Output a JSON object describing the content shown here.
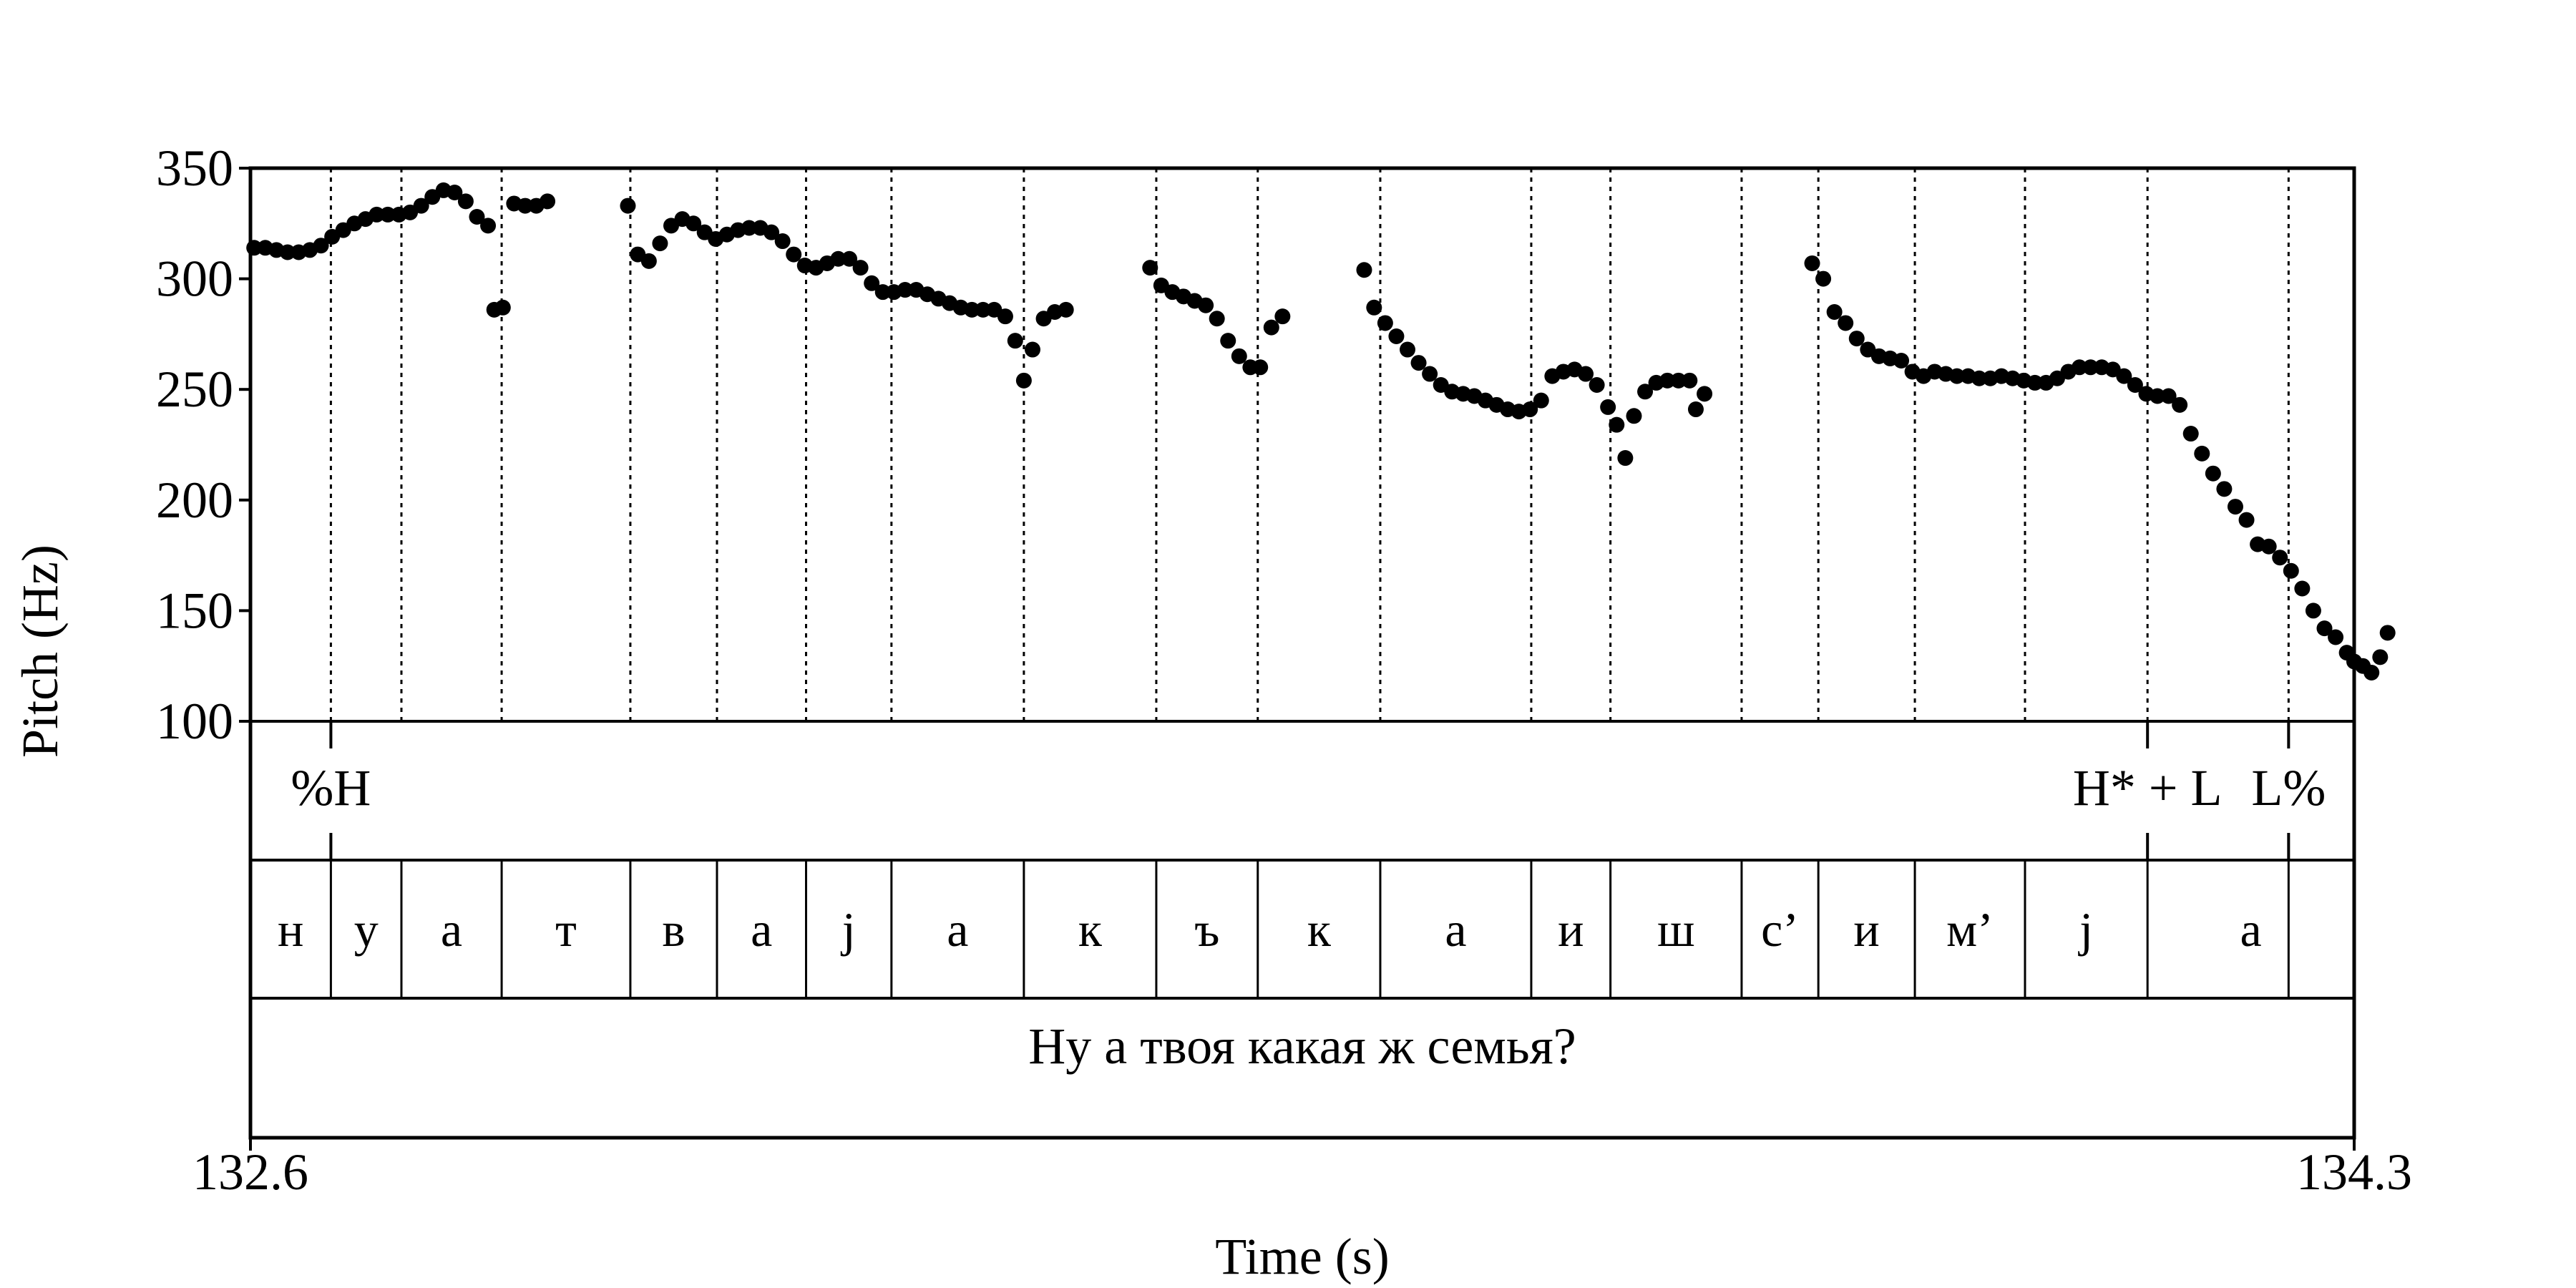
{
  "chart_data": {
    "type": "scatter",
    "xlabel": "Time (s)",
    "ylabel": "Pitch (Hz)",
    "xlim": [
      132.6,
      134.3
    ],
    "ylim": [
      100,
      350
    ],
    "x_tick_labels": [
      "132.6",
      "134.3"
    ],
    "y_ticks": [
      100,
      150,
      200,
      250,
      300,
      350
    ],
    "grid": "dotted vertical lines at segment boundaries",
    "boundaries": [
      132.665,
      132.722,
      132.803,
      132.907,
      132.977,
      133.049,
      133.118,
      133.225,
      133.332,
      133.414,
      133.513,
      133.635,
      133.699,
      133.805,
      133.867,
      133.945,
      134.034,
      134.133,
      134.247
    ],
    "tones": [
      {
        "label": "%H",
        "time": 132.665
      },
      {
        "label": "H* + L",
        "time": 134.133
      },
      {
        "label": "L%",
        "time": 134.247
      }
    ],
    "segments": [
      {
        "label": "н",
        "start": 132.6,
        "end": 132.665
      },
      {
        "label": "у",
        "start": 132.665,
        "end": 132.722
      },
      {
        "label": "а",
        "start": 132.722,
        "end": 132.803
      },
      {
        "label": "т",
        "start": 132.803,
        "end": 132.907
      },
      {
        "label": "в",
        "start": 132.907,
        "end": 132.977
      },
      {
        "label": "а",
        "start": 132.977,
        "end": 133.049
      },
      {
        "label": "j",
        "start": 133.049,
        "end": 133.118
      },
      {
        "label": "а",
        "start": 133.118,
        "end": 133.225
      },
      {
        "label": "к",
        "start": 133.225,
        "end": 133.332
      },
      {
        "label": "ъ",
        "start": 133.332,
        "end": 133.414
      },
      {
        "label": "к",
        "start": 133.414,
        "end": 133.513
      },
      {
        "label": "а",
        "start": 133.513,
        "end": 133.635
      },
      {
        "label": "и",
        "start": 133.635,
        "end": 133.699
      },
      {
        "label": "ш",
        "start": 133.699,
        "end": 133.805
      },
      {
        "label": "с’",
        "start": 133.805,
        "end": 133.867
      },
      {
        "label": "и",
        "start": 133.867,
        "end": 133.945
      },
      {
        "label": "м’",
        "start": 133.945,
        "end": 134.034
      },
      {
        "label": "j",
        "start": 134.034,
        "end": 134.133
      },
      {
        "label": "а",
        "start": 134.133,
        "end": 134.3
      }
    ],
    "sentence": "Ну а твоя какая ж семья?",
    "points": [
      [
        132.603,
        314
      ],
      [
        132.612,
        314
      ],
      [
        132.621,
        313
      ],
      [
        132.63,
        312
      ],
      [
        132.639,
        312
      ],
      [
        132.648,
        313
      ],
      [
        132.657,
        315
      ],
      [
        132.666,
        319
      ],
      [
        132.675,
        322
      ],
      [
        132.684,
        325
      ],
      [
        132.693,
        327
      ],
      [
        132.702,
        329
      ],
      [
        132.711,
        329
      ],
      [
        132.72,
        329
      ],
      [
        132.729,
        330
      ],
      [
        132.738,
        333
      ],
      [
        132.747,
        337
      ],
      [
        132.756,
        340
      ],
      [
        132.765,
        339
      ],
      [
        132.774,
        335
      ],
      [
        132.783,
        328
      ],
      [
        132.792,
        324
      ],
      [
        132.797,
        286
      ],
      [
        132.804,
        287
      ],
      [
        132.813,
        334
      ],
      [
        132.822,
        333
      ],
      [
        132.831,
        333
      ],
      [
        132.84,
        335
      ],
      [
        132.905,
        333
      ],
      [
        132.913,
        311
      ],
      [
        132.922,
        308
      ],
      [
        132.931,
        316
      ],
      [
        132.94,
        324
      ],
      [
        132.949,
        327
      ],
      [
        132.958,
        325
      ],
      [
        132.967,
        321
      ],
      [
        132.976,
        318
      ],
      [
        132.985,
        320
      ],
      [
        132.994,
        322
      ],
      [
        133.003,
        323
      ],
      [
        133.012,
        323
      ],
      [
        133.021,
        321
      ],
      [
        133.03,
        317
      ],
      [
        133.039,
        311
      ],
      [
        133.048,
        306
      ],
      [
        133.057,
        305
      ],
      [
        133.066,
        307
      ],
      [
        133.075,
        309
      ],
      [
        133.084,
        309
      ],
      [
        133.093,
        305
      ],
      [
        133.102,
        298
      ],
      [
        133.111,
        294
      ],
      [
        133.12,
        294
      ],
      [
        133.129,
        295
      ],
      [
        133.138,
        295
      ],
      [
        133.147,
        293
      ],
      [
        133.156,
        291
      ],
      [
        133.165,
        289
      ],
      [
        133.174,
        287
      ],
      [
        133.183,
        286
      ],
      [
        133.192,
        286
      ],
      [
        133.201,
        286
      ],
      [
        133.21,
        283
      ],
      [
        133.218,
        272
      ],
      [
        133.225,
        254
      ],
      [
        133.232,
        268
      ],
      [
        133.241,
        282
      ],
      [
        133.25,
        285
      ],
      [
        133.259,
        286
      ],
      [
        133.327,
        305
      ],
      [
        133.336,
        297
      ],
      [
        133.345,
        294
      ],
      [
        133.354,
        292
      ],
      [
        133.363,
        290
      ],
      [
        133.372,
        288
      ],
      [
        133.381,
        282
      ],
      [
        133.39,
        272
      ],
      [
        133.399,
        265
      ],
      [
        133.408,
        260
      ],
      [
        133.416,
        260
      ],
      [
        133.425,
        278
      ],
      [
        133.434,
        283
      ],
      [
        133.5,
        304
      ],
      [
        133.508,
        287
      ],
      [
        133.517,
        280
      ],
      [
        133.526,
        274
      ],
      [
        133.535,
        268
      ],
      [
        133.544,
        262
      ],
      [
        133.553,
        257
      ],
      [
        133.562,
        252
      ],
      [
        133.571,
        249
      ],
      [
        133.58,
        248
      ],
      [
        133.589,
        247
      ],
      [
        133.598,
        245
      ],
      [
        133.607,
        243
      ],
      [
        133.616,
        241
      ],
      [
        133.625,
        240
      ],
      [
        133.634,
        241
      ],
      [
        133.643,
        245
      ],
      [
        133.652,
        256
      ],
      [
        133.661,
        258
      ],
      [
        133.67,
        259
      ],
      [
        133.679,
        257
      ],
      [
        133.688,
        252
      ],
      [
        133.697,
        242
      ],
      [
        133.704,
        234
      ],
      [
        133.711,
        219
      ],
      [
        133.718,
        238
      ],
      [
        133.727,
        249
      ],
      [
        133.736,
        253
      ],
      [
        133.745,
        254
      ],
      [
        133.754,
        254
      ],
      [
        133.763,
        254
      ],
      [
        133.768,
        241
      ],
      [
        133.775,
        248
      ],
      [
        133.862,
        307
      ],
      [
        133.871,
        300
      ],
      [
        133.88,
        285
      ],
      [
        133.889,
        280
      ],
      [
        133.898,
        273
      ],
      [
        133.907,
        268
      ],
      [
        133.916,
        265
      ],
      [
        133.925,
        264
      ],
      [
        133.934,
        263
      ],
      [
        133.943,
        258
      ],
      [
        133.952,
        256
      ],
      [
        133.961,
        258
      ],
      [
        133.97,
        257
      ],
      [
        133.979,
        256
      ],
      [
        133.988,
        256
      ],
      [
        133.997,
        255
      ],
      [
        134.006,
        255
      ],
      [
        134.015,
        256
      ],
      [
        134.024,
        255
      ],
      [
        134.033,
        254
      ],
      [
        134.042,
        253
      ],
      [
        134.051,
        253
      ],
      [
        134.06,
        255
      ],
      [
        134.069,
        258
      ],
      [
        134.078,
        260
      ],
      [
        134.087,
        260
      ],
      [
        134.096,
        260
      ],
      [
        134.105,
        259
      ],
      [
        134.114,
        256
      ],
      [
        134.123,
        252
      ],
      [
        134.132,
        248
      ],
      [
        134.141,
        247
      ],
      [
        134.15,
        247
      ],
      [
        134.159,
        243
      ],
      [
        134.168,
        230
      ],
      [
        134.177,
        221
      ],
      [
        134.186,
        212
      ],
      [
        134.195,
        205
      ],
      [
        134.204,
        197
      ],
      [
        134.213,
        191
      ],
      [
        134.222,
        180
      ],
      [
        134.231,
        179
      ],
      [
        134.24,
        174
      ],
      [
        134.249,
        168
      ],
      [
        134.258,
        160
      ],
      [
        134.267,
        150
      ],
      [
        134.276,
        142
      ],
      [
        134.285,
        138
      ],
      [
        134.294,
        131
      ],
      [
        134.3,
        127
      ],
      [
        134.307,
        125
      ],
      [
        134.314,
        122
      ],
      [
        134.321,
        129
      ],
      [
        134.327,
        140
      ]
    ]
  }
}
